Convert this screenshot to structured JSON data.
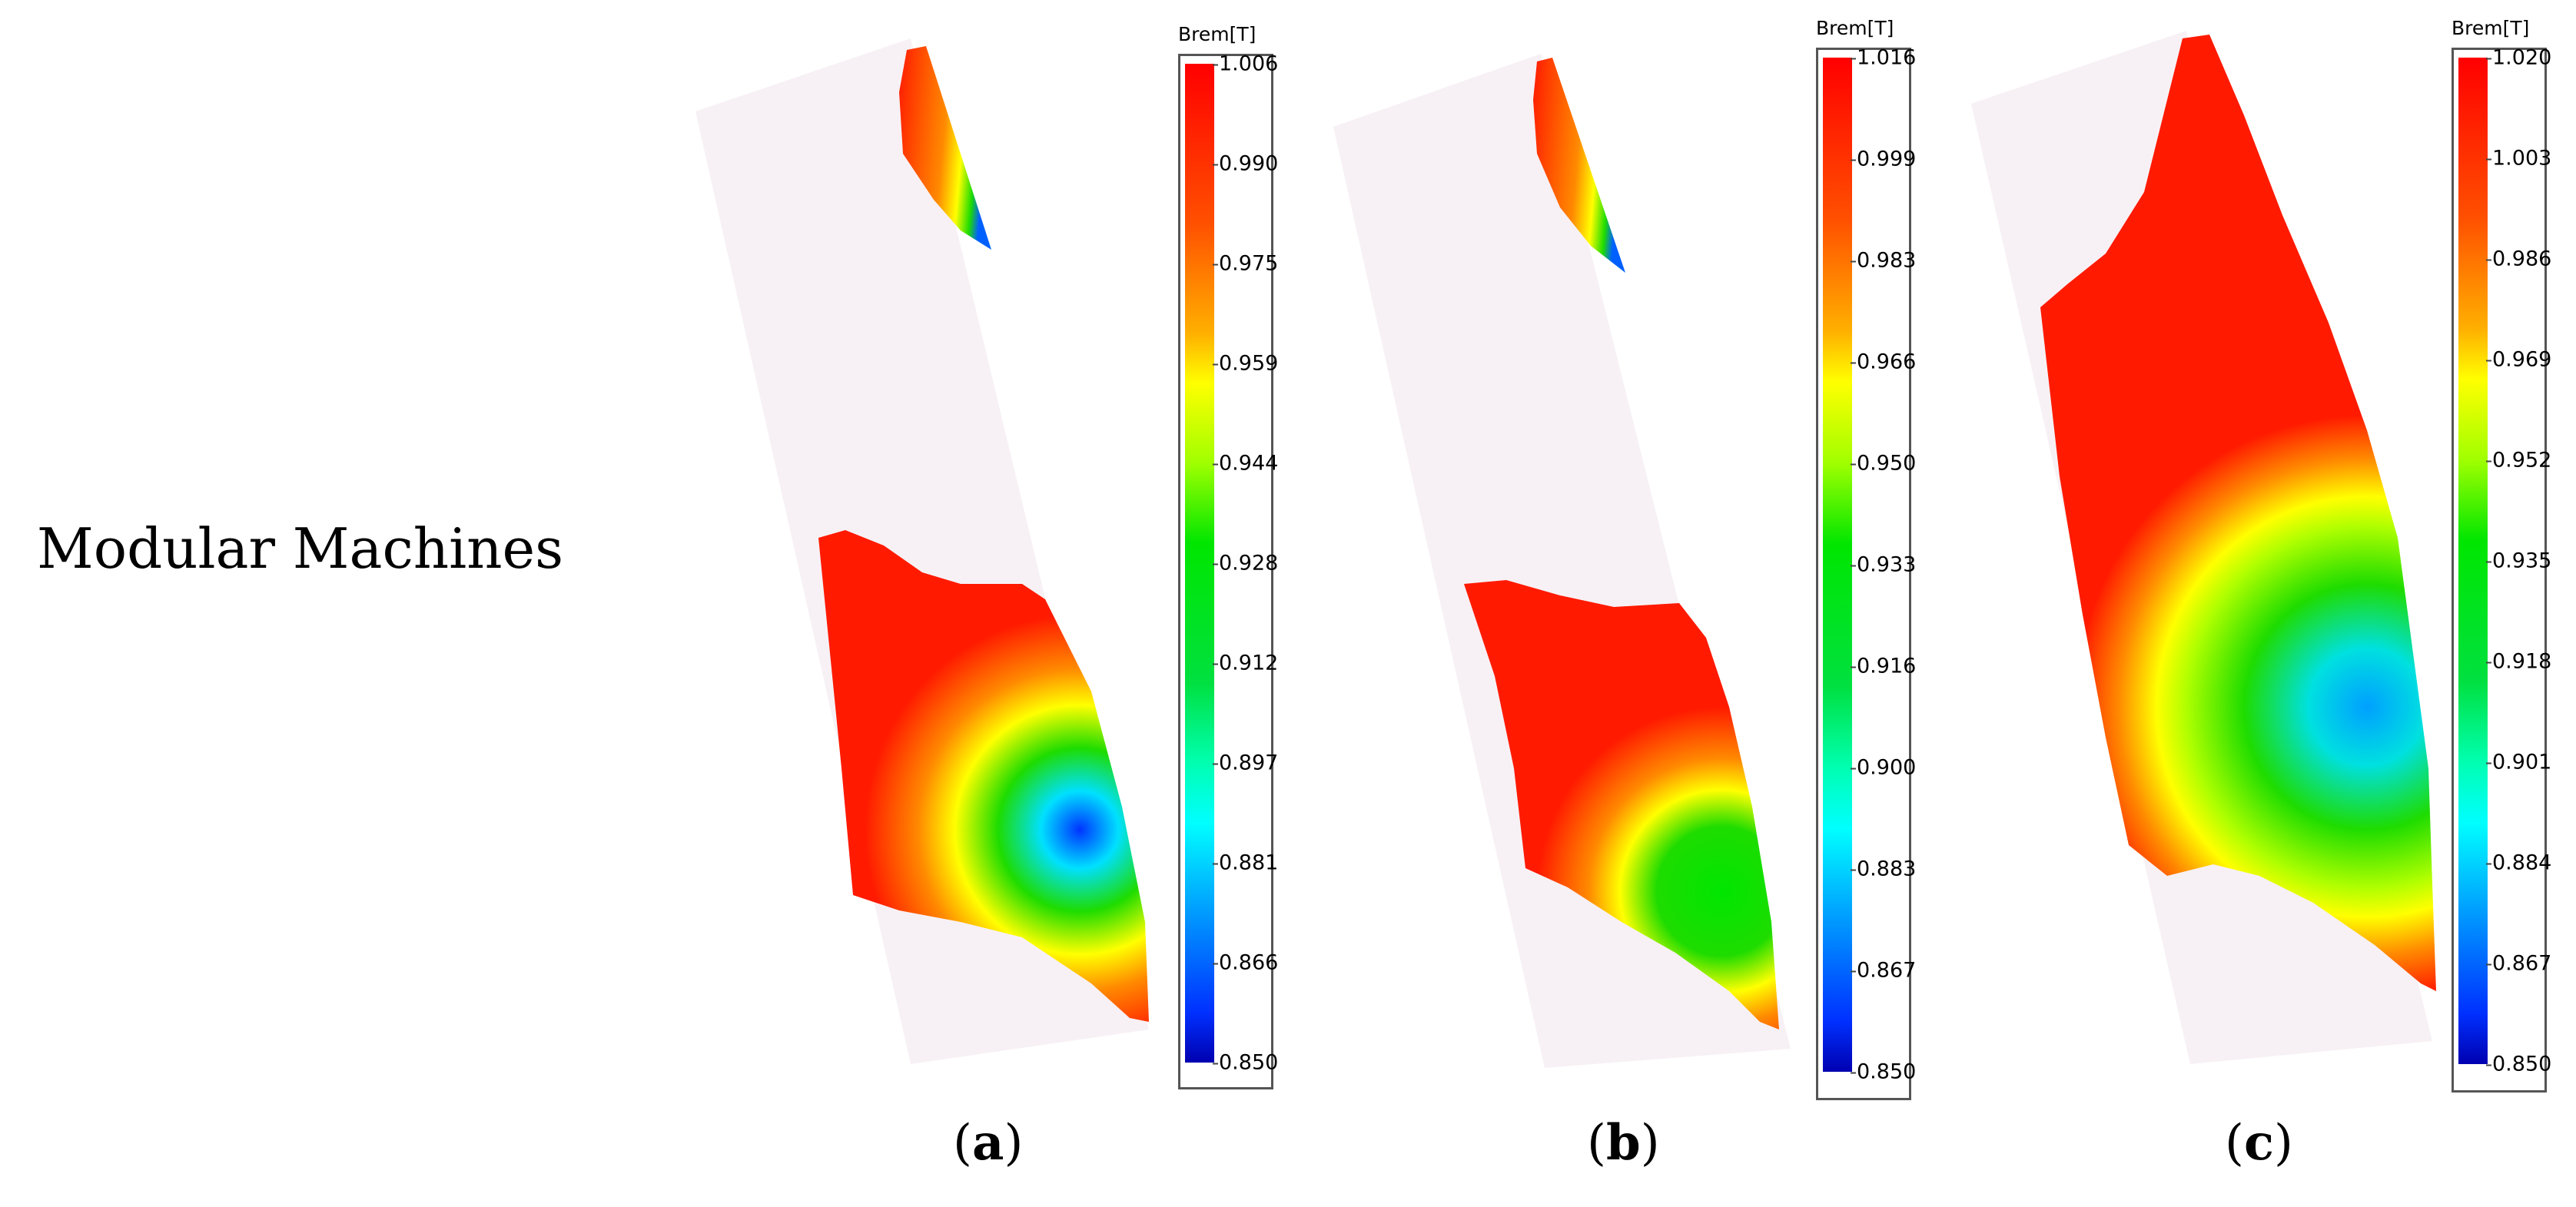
{
  "row_label": "Modular Machines",
  "panels": [
    {
      "caption_letter": "a",
      "legend_title": "Brem[T]",
      "ticks": [
        "1.006",
        "0.990",
        "0.975",
        "0.959",
        "0.944",
        "0.928",
        "0.912",
        "0.897",
        "0.881",
        "0.866",
        "0.850"
      ]
    },
    {
      "caption_letter": "b",
      "legend_title": "Brem[T]",
      "ticks": [
        "1.016",
        "0.999",
        "0.983",
        "0.966",
        "0.950",
        "0.933",
        "0.916",
        "0.900",
        "0.883",
        "0.867",
        "0.850"
      ]
    },
    {
      "caption_letter": "c",
      "legend_title": "Brem[T]",
      "ticks": [
        "1.020",
        "1.003",
        "0.986",
        "0.969",
        "0.952",
        "0.935",
        "0.918",
        "0.901",
        "0.884",
        "0.867",
        "0.850"
      ]
    }
  ],
  "colors": {
    "background_region": "#f7f1f5",
    "high": "#ff1a00",
    "orange": "#ff8a00",
    "yellow": "#ffff00",
    "green": "#1edc00",
    "cyan": "#00f0ff",
    "blue": "#0034ff",
    "low": "#0000b0"
  }
}
